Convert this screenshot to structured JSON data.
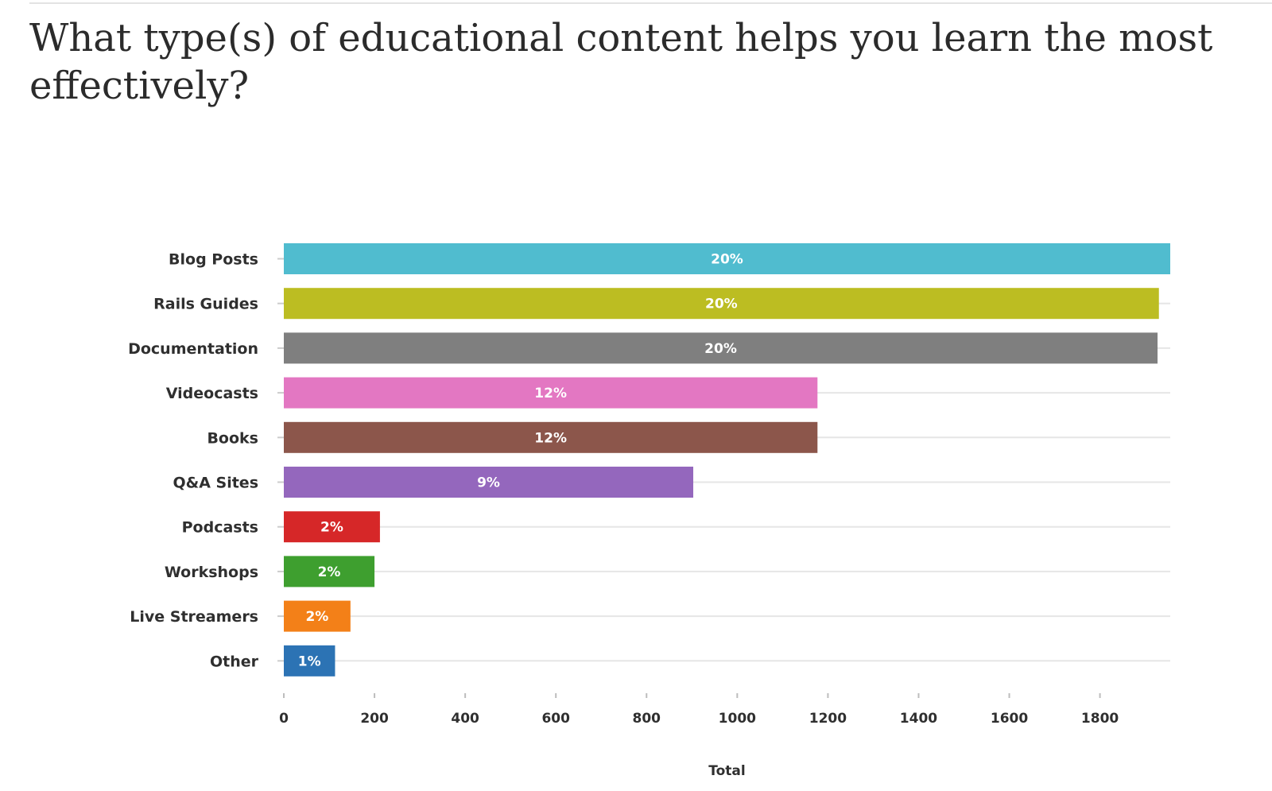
{
  "question": {
    "title": "What type(s) of educational content helps you learn the most effectively?"
  },
  "chart_data": {
    "type": "bar",
    "orientation": "horizontal",
    "categories": [
      "Blog Posts",
      "Rails Guides",
      "Documentation",
      "Videocasts",
      "Books",
      "Q&A Sites",
      "Podcasts",
      "Workshops",
      "Live Streamers",
      "Other"
    ],
    "values": [
      1955,
      1930,
      1927,
      1177,
      1177,
      903,
      212,
      200,
      147,
      113
    ],
    "data_labels": [
      "20%",
      "20%",
      "20%",
      "12%",
      "12%",
      "9%",
      "2%",
      "2%",
      "2%",
      "1%"
    ],
    "colors": [
      "#50bccf",
      "#bcbd22",
      "#7f7f7f",
      "#e377c2",
      "#8c564b",
      "#9467bd",
      "#d62728",
      "#3e9f2f",
      "#f38018",
      "#2c73b4"
    ],
    "xlabel": "Total",
    "xlim": [
      0,
      1955
    ],
    "xticks": [
      0,
      200,
      400,
      600,
      800,
      1000,
      1200,
      1400,
      1600,
      1800
    ],
    "grid": true,
    "gridline_color": "#e6e6e6"
  }
}
